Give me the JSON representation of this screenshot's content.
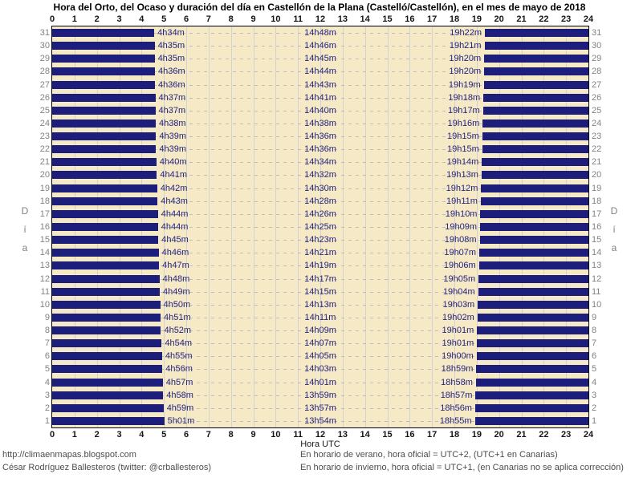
{
  "chart_data": {
    "type": "bar",
    "orientation": "horizontal",
    "title": "Hora del Orto, del Ocaso y duración del día en Castellón de la Plana (Castelló/Castellón), en el mes de mayo de 2018",
    "xlabel": "Hora UTC",
    "ylabel": "Día",
    "xlim": [
      0,
      24
    ],
    "x_ticks": [
      0,
      1,
      2,
      3,
      4,
      5,
      6,
      7,
      8,
      9,
      10,
      11,
      12,
      13,
      14,
      15,
      16,
      17,
      18,
      19,
      20,
      21,
      22,
      23,
      24
    ],
    "grid": true,
    "legend_position": "none",
    "description": "Navy bars mark night hours (00:00 to sunrise and sunset to 24:00, UTC); cream band is daylight. Days listed top (31) to bottom (1).",
    "colors": {
      "night_bar": "#1d1d7c",
      "daylight_background": "#f6e9c6",
      "grid_line": "#d2d2d2",
      "grid_dash": "#bcbcbc",
      "time_label": "#26267e",
      "day_number": "#828282",
      "axis_text": "#141414",
      "plot_border": "#000000"
    },
    "rows": [
      {
        "day": 31,
        "sunrise": "4h34m",
        "duration": "14h48m",
        "sunset": "19h22m"
      },
      {
        "day": 30,
        "sunrise": "4h35m",
        "duration": "14h46m",
        "sunset": "19h21m"
      },
      {
        "day": 29,
        "sunrise": "4h35m",
        "duration": "14h45m",
        "sunset": "19h20m"
      },
      {
        "day": 28,
        "sunrise": "4h36m",
        "duration": "14h44m",
        "sunset": "19h20m"
      },
      {
        "day": 27,
        "sunrise": "4h36m",
        "duration": "14h43m",
        "sunset": "19h19m"
      },
      {
        "day": 26,
        "sunrise": "4h37m",
        "duration": "14h41m",
        "sunset": "19h18m"
      },
      {
        "day": 25,
        "sunrise": "4h37m",
        "duration": "14h40m",
        "sunset": "19h17m"
      },
      {
        "day": 24,
        "sunrise": "4h38m",
        "duration": "14h38m",
        "sunset": "19h16m"
      },
      {
        "day": 23,
        "sunrise": "4h39m",
        "duration": "14h36m",
        "sunset": "19h15m"
      },
      {
        "day": 22,
        "sunrise": "4h39m",
        "duration": "14h36m",
        "sunset": "19h15m"
      },
      {
        "day": 21,
        "sunrise": "4h40m",
        "duration": "14h34m",
        "sunset": "19h14m"
      },
      {
        "day": 20,
        "sunrise": "4h41m",
        "duration": "14h32m",
        "sunset": "19h13m"
      },
      {
        "day": 19,
        "sunrise": "4h42m",
        "duration": "14h30m",
        "sunset": "19h12m"
      },
      {
        "day": 18,
        "sunrise": "4h43m",
        "duration": "14h28m",
        "sunset": "19h11m"
      },
      {
        "day": 17,
        "sunrise": "4h44m",
        "duration": "14h26m",
        "sunset": "19h10m"
      },
      {
        "day": 16,
        "sunrise": "4h44m",
        "duration": "14h25m",
        "sunset": "19h09m"
      },
      {
        "day": 15,
        "sunrise": "4h45m",
        "duration": "14h23m",
        "sunset": "19h08m"
      },
      {
        "day": 14,
        "sunrise": "4h46m",
        "duration": "14h21m",
        "sunset": "19h07m"
      },
      {
        "day": 13,
        "sunrise": "4h47m",
        "duration": "14h19m",
        "sunset": "19h06m"
      },
      {
        "day": 12,
        "sunrise": "4h48m",
        "duration": "14h17m",
        "sunset": "19h05m"
      },
      {
        "day": 11,
        "sunrise": "4h49m",
        "duration": "14h15m",
        "sunset": "19h04m"
      },
      {
        "day": 10,
        "sunrise": "4h50m",
        "duration": "14h13m",
        "sunset": "19h03m"
      },
      {
        "day": 9,
        "sunrise": "4h51m",
        "duration": "14h11m",
        "sunset": "19h02m"
      },
      {
        "day": 8,
        "sunrise": "4h52m",
        "duration": "14h09m",
        "sunset": "19h01m"
      },
      {
        "day": 7,
        "sunrise": "4h54m",
        "duration": "14h07m",
        "sunset": "19h01m"
      },
      {
        "day": 6,
        "sunrise": "4h55m",
        "duration": "14h05m",
        "sunset": "19h00m"
      },
      {
        "day": 5,
        "sunrise": "4h56m",
        "duration": "14h03m",
        "sunset": "18h59m"
      },
      {
        "day": 4,
        "sunrise": "4h57m",
        "duration": "14h01m",
        "sunset": "18h58m"
      },
      {
        "day": 3,
        "sunrise": "4h58m",
        "duration": "13h59m",
        "sunset": "18h57m"
      },
      {
        "day": 2,
        "sunrise": "4h59m",
        "duration": "13h57m",
        "sunset": "18h56m"
      },
      {
        "day": 1,
        "sunrise": "5h01m",
        "duration": "13h54m",
        "sunset": "18h55m"
      }
    ]
  },
  "footer": {
    "left_line1": "http://climaenmapas.blogspot.com",
    "left_line2": "César Rodríguez Ballesteros (twitter: @crballesteros)",
    "right_line1": "En horario de verano, hora oficial = UTC+2, (UTC+1 en Canarias)",
    "right_line2": "En horario de invierno, hora oficial = UTC+1, (en Canarias no se aplica corrección)"
  }
}
